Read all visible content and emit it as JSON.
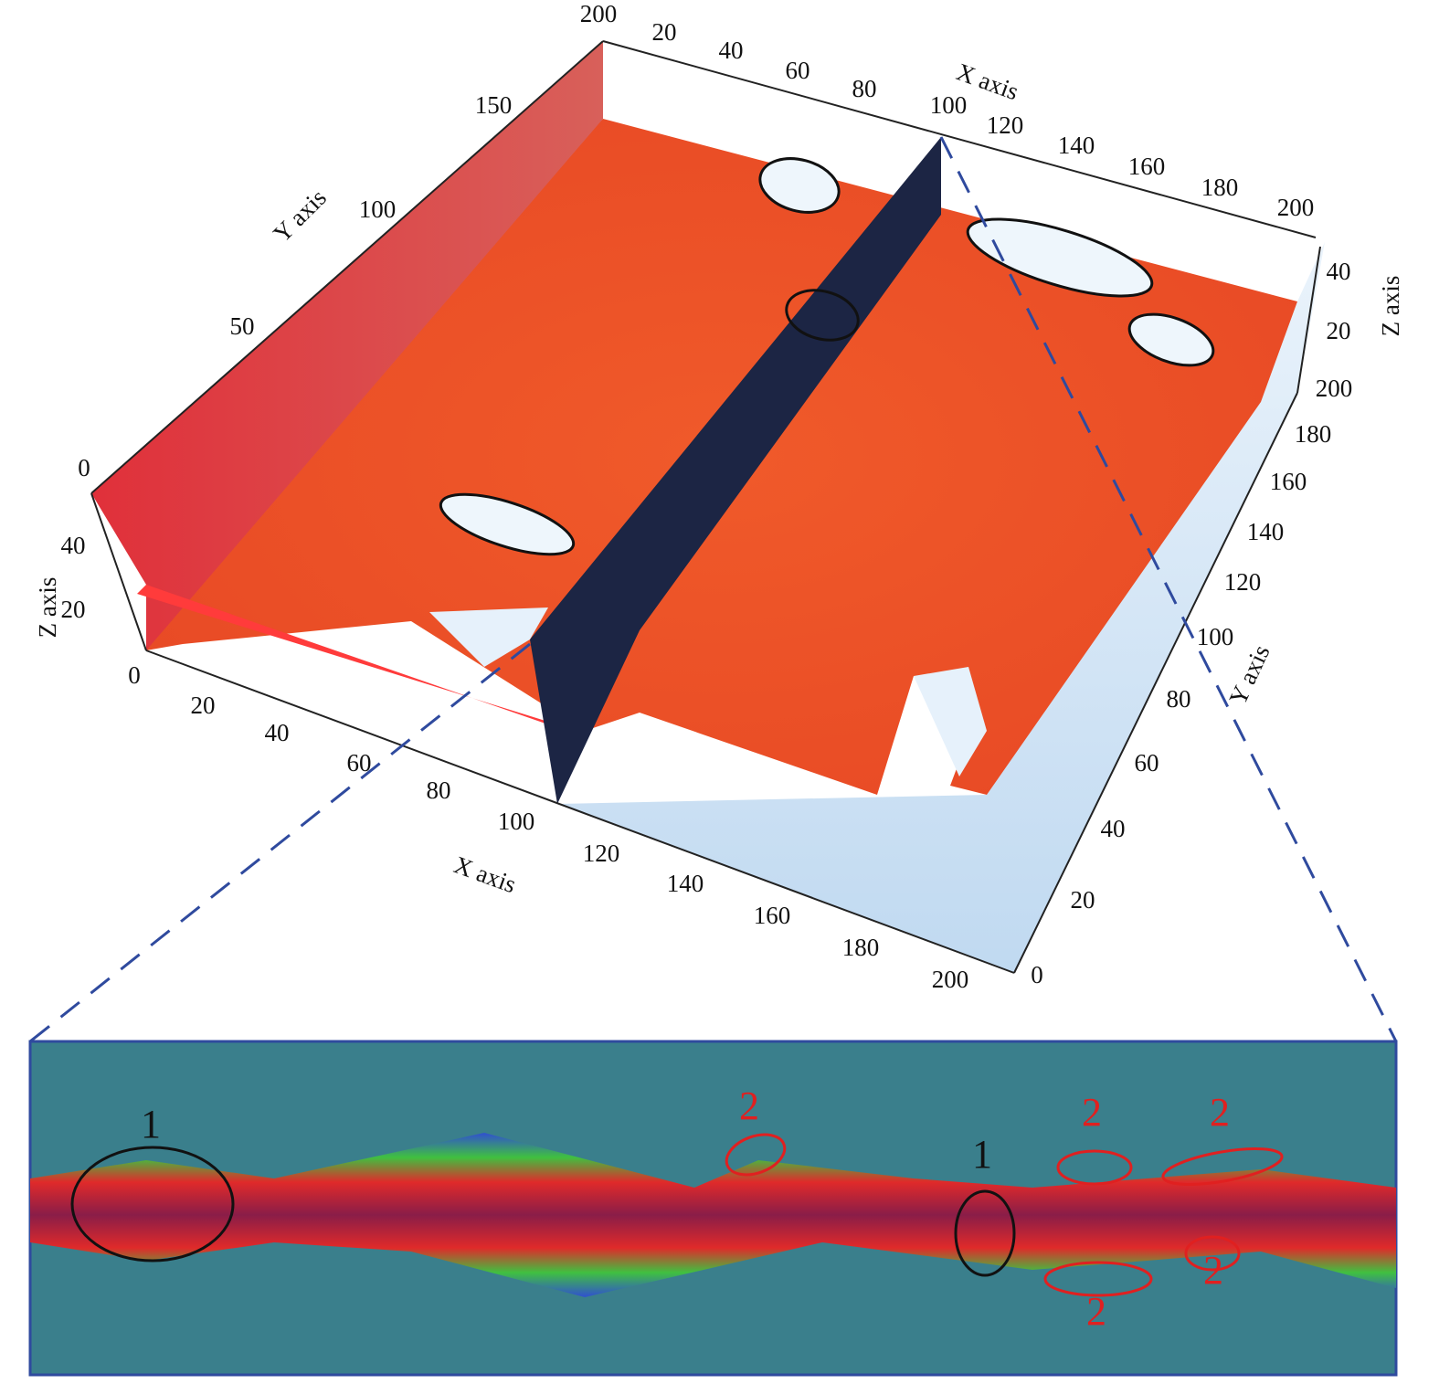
{
  "front_x_axis": {
    "title": "X axis",
    "ticks": [
      "0",
      "20",
      "40",
      "60",
      "80",
      "100",
      "120",
      "140",
      "160",
      "180",
      "200"
    ]
  },
  "back_x_axis": {
    "title": "X axis",
    "ticks": [
      "20",
      "40",
      "60",
      "80",
      "100",
      "120",
      "140",
      "160",
      "180",
      "200"
    ]
  },
  "left_y_axis": {
    "title": "Y axis",
    "ticks": [
      "50",
      "100",
      "150",
      "200"
    ]
  },
  "left_z_axis": {
    "title": "Z axis",
    "ticks": [
      "0",
      "40",
      "20"
    ]
  },
  "right_y_axis": {
    "title": "Y axis",
    "ticks": [
      "0",
      "20",
      "40",
      "60",
      "80",
      "100",
      "120",
      "140",
      "160",
      "180",
      "200"
    ]
  },
  "right_z_axis": {
    "title": "Z axis",
    "ticks": [
      "20",
      "40"
    ]
  },
  "zoom_labels": [
    "1",
    "1",
    "2",
    "2",
    "2",
    "2",
    "2"
  ]
}
